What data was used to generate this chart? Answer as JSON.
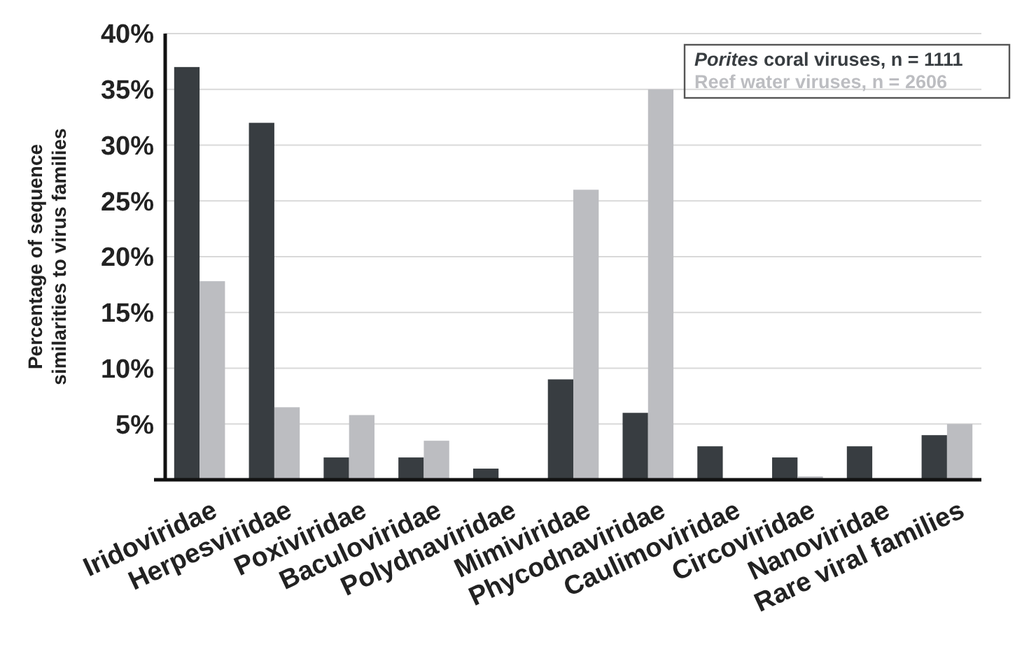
{
  "chart_data": {
    "type": "bar",
    "ylabel": "Percentage of sequence similarities to virus families",
    "categories": [
      "Iridoviridae",
      "Herpesviridae",
      "Poxiviridae",
      "Baculoviridae",
      "Polydnaviridae",
      "Mimiviridae",
      "Phycodnaviridae",
      "Caulimoviridae",
      "Circoviridae",
      "Nanoviridae",
      "Rare viral families"
    ],
    "series": [
      {
        "name": "Porites coral viruses, n = 1111",
        "color": "#383d41",
        "values": [
          37,
          32,
          2,
          2,
          1,
          9,
          6,
          3,
          2,
          3,
          4
        ]
      },
      {
        "name": "Reef water viruses, n = 2606",
        "color": "#bcbdc1",
        "values": [
          17.8,
          6.5,
          5.8,
          3.5,
          null,
          26,
          35,
          0,
          0.3,
          0,
          5
        ]
      }
    ],
    "ylim": [
      0,
      40
    ],
    "yticks": [
      {
        "value": 5,
        "label": "5%"
      },
      {
        "value": 10,
        "label": "10%"
      },
      {
        "value": 15,
        "label": "15%"
      },
      {
        "value": 20,
        "label": "20%"
      },
      {
        "value": 25,
        "label": "25%"
      },
      {
        "value": 30,
        "label": "30%"
      },
      {
        "value": 35,
        "label": "35%"
      },
      {
        "value": 40,
        "label": "40%"
      }
    ],
    "grid": "y",
    "legend": "top right"
  }
}
